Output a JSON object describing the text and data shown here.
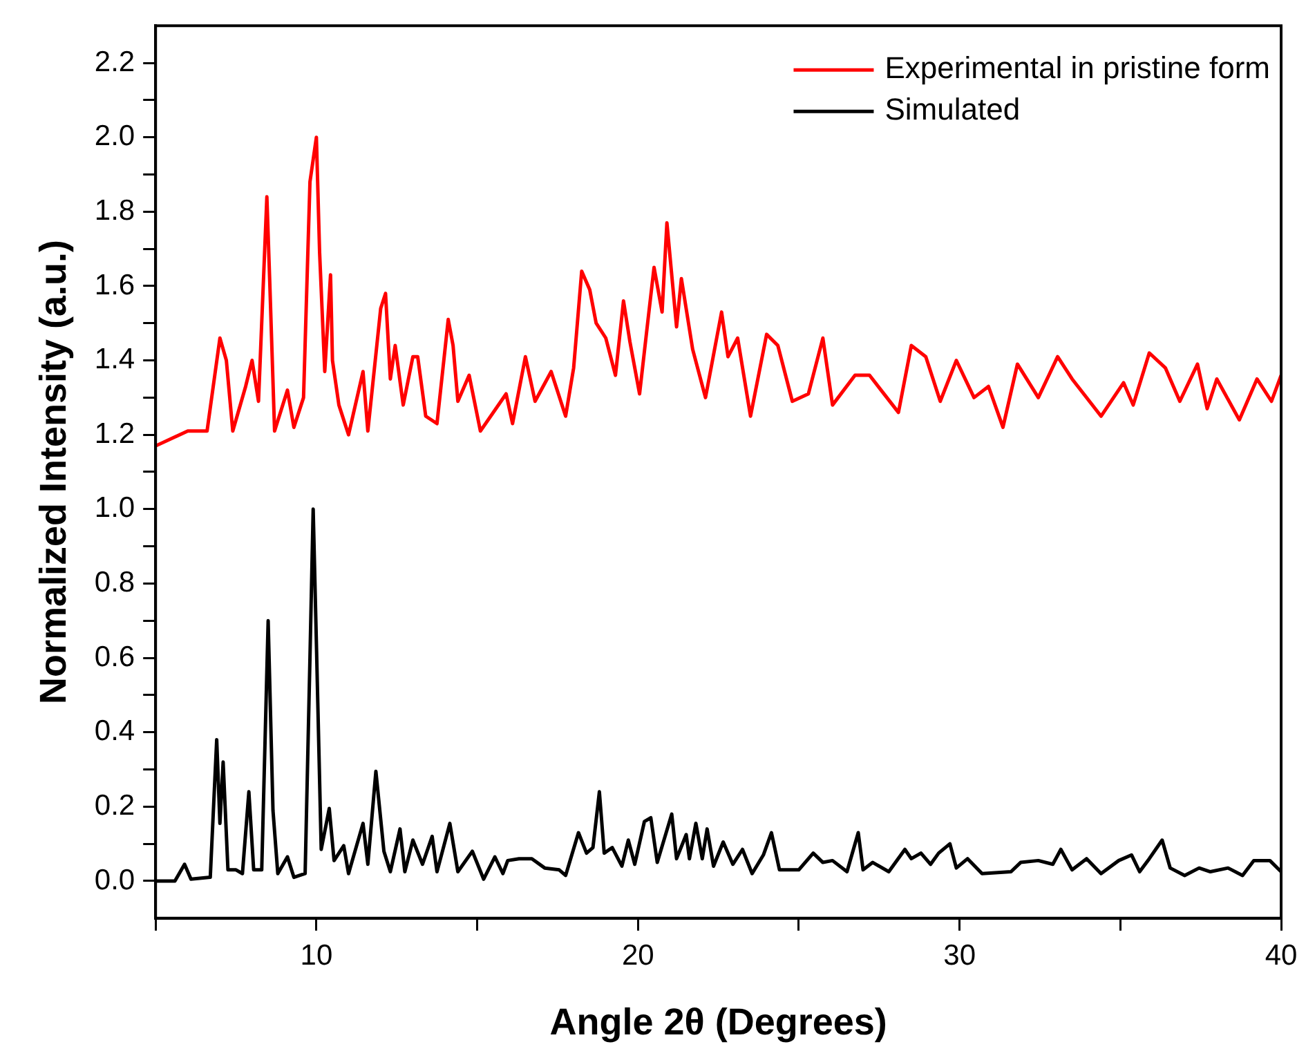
{
  "chart_data": {
    "type": "line",
    "xlabel": "Angle 2θ (Degrees)",
    "ylabel": "Normalized Intensity (a.u.)",
    "legend": "top right",
    "grid": false,
    "marker": "none",
    "line_style": "solid",
    "xlim": [
      5,
      40
    ],
    "ylim": [
      -0.1,
      2.3
    ],
    "xticks": [
      {
        "value": 5,
        "label": null
      },
      10,
      {
        "value": 15,
        "label": null
      },
      20,
      {
        "value": 25,
        "label": null
      },
      30,
      {
        "value": 35,
        "label": null
      },
      40
    ],
    "yticks": [
      {
        "value": 0,
        "label": "0.0"
      },
      {
        "value": 0.1,
        "label": null
      },
      0.2,
      {
        "value": 0.3,
        "label": null
      },
      0.4,
      {
        "value": 0.5,
        "label": null
      },
      0.6,
      {
        "value": 0.7,
        "label": null
      },
      0.8,
      {
        "value": 0.9,
        "label": null
      },
      {
        "value": 1,
        "label": "1.0"
      },
      {
        "value": 1.1,
        "label": null
      },
      1.2,
      {
        "value": 1.3,
        "label": null
      },
      1.4,
      {
        "value": 1.5,
        "label": null
      },
      1.6,
      {
        "value": 1.7,
        "label": null
      },
      1.8,
      {
        "value": 1.9,
        "label": null
      },
      {
        "value": 2,
        "label": "2.0"
      },
      {
        "value": 2.1,
        "label": null
      },
      2.2
    ],
    "series": [
      {
        "name": "Experimental in pristine form",
        "color": "#ff0000",
        "x": [
          5.0,
          6.0,
          6.6,
          7.0,
          7.2,
          7.4,
          7.8,
          8.0,
          8.2,
          8.46,
          8.55,
          8.7,
          9.1,
          9.3,
          9.6,
          9.8,
          10.0,
          10.1,
          10.26,
          10.44,
          10.5,
          10.7,
          11.0,
          11.45,
          11.6,
          12.0,
          12.15,
          12.3,
          12.45,
          12.7,
          13.0,
          13.15,
          13.4,
          13.75,
          14.1,
          14.25,
          14.4,
          14.75,
          15.1,
          15.9,
          16.1,
          16.5,
          16.8,
          17.3,
          17.75,
          18.0,
          18.25,
          18.5,
          18.7,
          19.0,
          19.3,
          19.55,
          19.75,
          20.05,
          20.3,
          20.5,
          20.75,
          20.9,
          21.2,
          21.35,
          21.7,
          22.1,
          22.6,
          22.8,
          23.1,
          23.5,
          24.0,
          24.35,
          24.8,
          25.3,
          25.75,
          26.05,
          26.75,
          27.2,
          28.1,
          28.5,
          28.95,
          29.4,
          29.9,
          30.45,
          30.9,
          31.35,
          31.8,
          32.45,
          33.05,
          33.5,
          34.4,
          35.1,
          35.4,
          35.9,
          36.4,
          36.85,
          37.4,
          37.7,
          38.0,
          38.7,
          39.25,
          39.7,
          40.0
        ],
        "values": [
          1.17,
          1.21,
          1.21,
          1.46,
          1.4,
          1.21,
          1.33,
          1.4,
          1.29,
          1.84,
          1.61,
          1.21,
          1.32,
          1.22,
          1.3,
          1.88,
          2.0,
          1.69,
          1.37,
          1.63,
          1.4,
          1.28,
          1.2,
          1.37,
          1.21,
          1.54,
          1.58,
          1.35,
          1.44,
          1.28,
          1.41,
          1.41,
          1.25,
          1.23,
          1.51,
          1.44,
          1.29,
          1.36,
          1.21,
          1.31,
          1.23,
          1.41,
          1.29,
          1.37,
          1.25,
          1.38,
          1.64,
          1.59,
          1.5,
          1.46,
          1.36,
          1.56,
          1.45,
          1.31,
          1.5,
          1.65,
          1.53,
          1.77,
          1.49,
          1.62,
          1.43,
          1.3,
          1.53,
          1.41,
          1.46,
          1.25,
          1.47,
          1.44,
          1.29,
          1.31,
          1.46,
          1.28,
          1.36,
          1.36,
          1.26,
          1.44,
          1.41,
          1.29,
          1.4,
          1.3,
          1.33,
          1.22,
          1.39,
          1.3,
          1.41,
          1.35,
          1.25,
          1.34,
          1.28,
          1.42,
          1.38,
          1.29,
          1.39,
          1.27,
          1.35,
          1.24,
          1.35,
          1.29,
          1.36
        ]
      },
      {
        "name": "Simulated",
        "color": "#000000",
        "x": [
          5.0,
          5.6,
          5.9,
          6.1,
          6.7,
          6.9,
          7.0,
          7.1,
          7.25,
          7.5,
          7.7,
          7.9,
          8.05,
          8.3,
          8.5,
          8.65,
          8.8,
          9.1,
          9.3,
          9.65,
          9.8,
          9.9,
          10.0,
          10.15,
          10.4,
          10.55,
          10.85,
          11.0,
          11.45,
          11.6,
          11.85,
          12.1,
          12.3,
          12.6,
          12.75,
          13.0,
          13.3,
          13.6,
          13.75,
          14.15,
          14.4,
          14.85,
          15.2,
          15.55,
          15.8,
          15.95,
          16.3,
          16.7,
          17.1,
          17.55,
          17.75,
          18.15,
          18.4,
          18.6,
          18.8,
          18.95,
          19.2,
          19.5,
          19.7,
          19.9,
          20.2,
          20.4,
          20.6,
          21.05,
          21.2,
          21.5,
          21.6,
          21.8,
          22.0,
          22.15,
          22.35,
          22.65,
          22.95,
          23.25,
          23.55,
          23.9,
          24.15,
          24.4,
          25.0,
          25.45,
          25.75,
          26.05,
          26.5,
          26.85,
          27.0,
          27.3,
          27.8,
          28.3,
          28.5,
          28.8,
          29.1,
          29.35,
          29.7,
          29.9,
          30.25,
          30.7,
          31.6,
          31.9,
          32.45,
          32.9,
          33.15,
          33.5,
          33.95,
          34.4,
          34.95,
          35.35,
          35.6,
          35.9,
          36.3,
          36.55,
          37.0,
          37.45,
          37.8,
          38.35,
          38.8,
          39.15,
          39.65,
          40.0
        ],
        "values": [
          0.0,
          0.0,
          0.045,
          0.005,
          0.01,
          0.38,
          0.155,
          0.32,
          0.03,
          0.03,
          0.02,
          0.24,
          0.03,
          0.03,
          0.7,
          0.19,
          0.02,
          0.065,
          0.01,
          0.02,
          0.6,
          1.0,
          0.64,
          0.085,
          0.195,
          0.055,
          0.095,
          0.02,
          0.155,
          0.045,
          0.295,
          0.08,
          0.025,
          0.14,
          0.025,
          0.11,
          0.045,
          0.12,
          0.025,
          0.155,
          0.025,
          0.08,
          0.005,
          0.065,
          0.02,
          0.055,
          0.06,
          0.06,
          0.035,
          0.03,
          0.015,
          0.13,
          0.075,
          0.09,
          0.24,
          0.075,
          0.09,
          0.04,
          0.11,
          0.045,
          0.16,
          0.17,
          0.05,
          0.18,
          0.06,
          0.125,
          0.06,
          0.155,
          0.06,
          0.14,
          0.04,
          0.105,
          0.045,
          0.085,
          0.02,
          0.07,
          0.13,
          0.03,
          0.03,
          0.075,
          0.05,
          0.055,
          0.025,
          0.13,
          0.03,
          0.05,
          0.025,
          0.085,
          0.06,
          0.075,
          0.045,
          0.075,
          0.1,
          0.035,
          0.06,
          0.02,
          0.025,
          0.05,
          0.055,
          0.045,
          0.085,
          0.03,
          0.06,
          0.02,
          0.055,
          0.07,
          0.025,
          0.06,
          0.11,
          0.035,
          0.015,
          0.035,
          0.025,
          0.035,
          0.015,
          0.055,
          0.055,
          0.025
        ]
      }
    ]
  }
}
